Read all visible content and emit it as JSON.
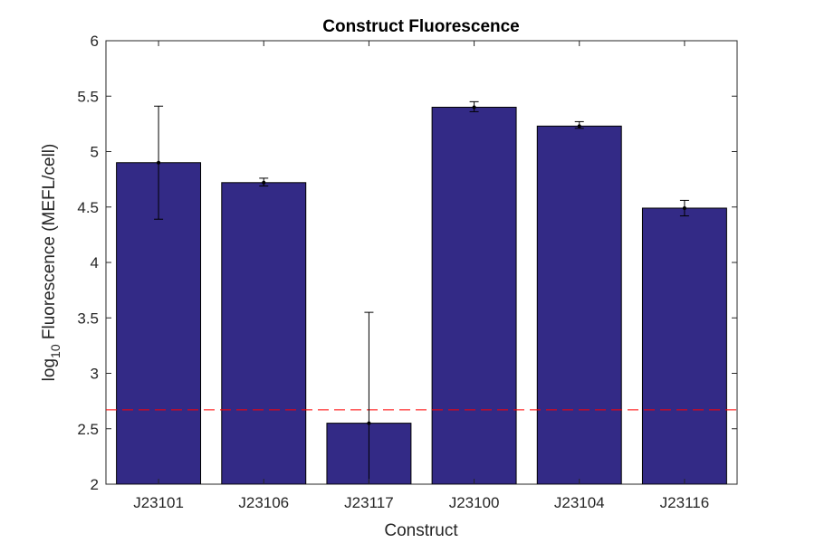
{
  "chart_data": {
    "type": "bar",
    "title": "Construct Fluorescence",
    "xlabel": "Construct",
    "ylabel": {
      "prefix": "log",
      "subscript": "10",
      "suffix": " Fluorescence (MEFL/cell)"
    },
    "ylim": [
      2,
      6
    ],
    "yticks": [
      2,
      2.5,
      3,
      3.5,
      4,
      4.5,
      5,
      5.5,
      6
    ],
    "ytick_labels": [
      "2",
      "2.5",
      "3",
      "3.5",
      "4",
      "4.5",
      "5",
      "5.5",
      "6"
    ],
    "grid": false,
    "categories": [
      "J23101",
      "J23106",
      "J23117",
      "J23100",
      "J23104",
      "J23116"
    ],
    "values": [
      4.9,
      4.72,
      2.55,
      5.4,
      5.23,
      4.49
    ],
    "error_low": [
      4.39,
      4.69,
      1.55,
      5.36,
      5.21,
      4.42
    ],
    "error_high": [
      5.41,
      4.76,
      3.55,
      5.45,
      5.27,
      4.56
    ],
    "reference_line": {
      "value": 2.67,
      "style": "dashed",
      "color": "#ff0000"
    },
    "colors": {
      "bar": "#332a86",
      "bar_edge": "#000000",
      "error_bar": "#000000",
      "axis": "#262626"
    }
  }
}
